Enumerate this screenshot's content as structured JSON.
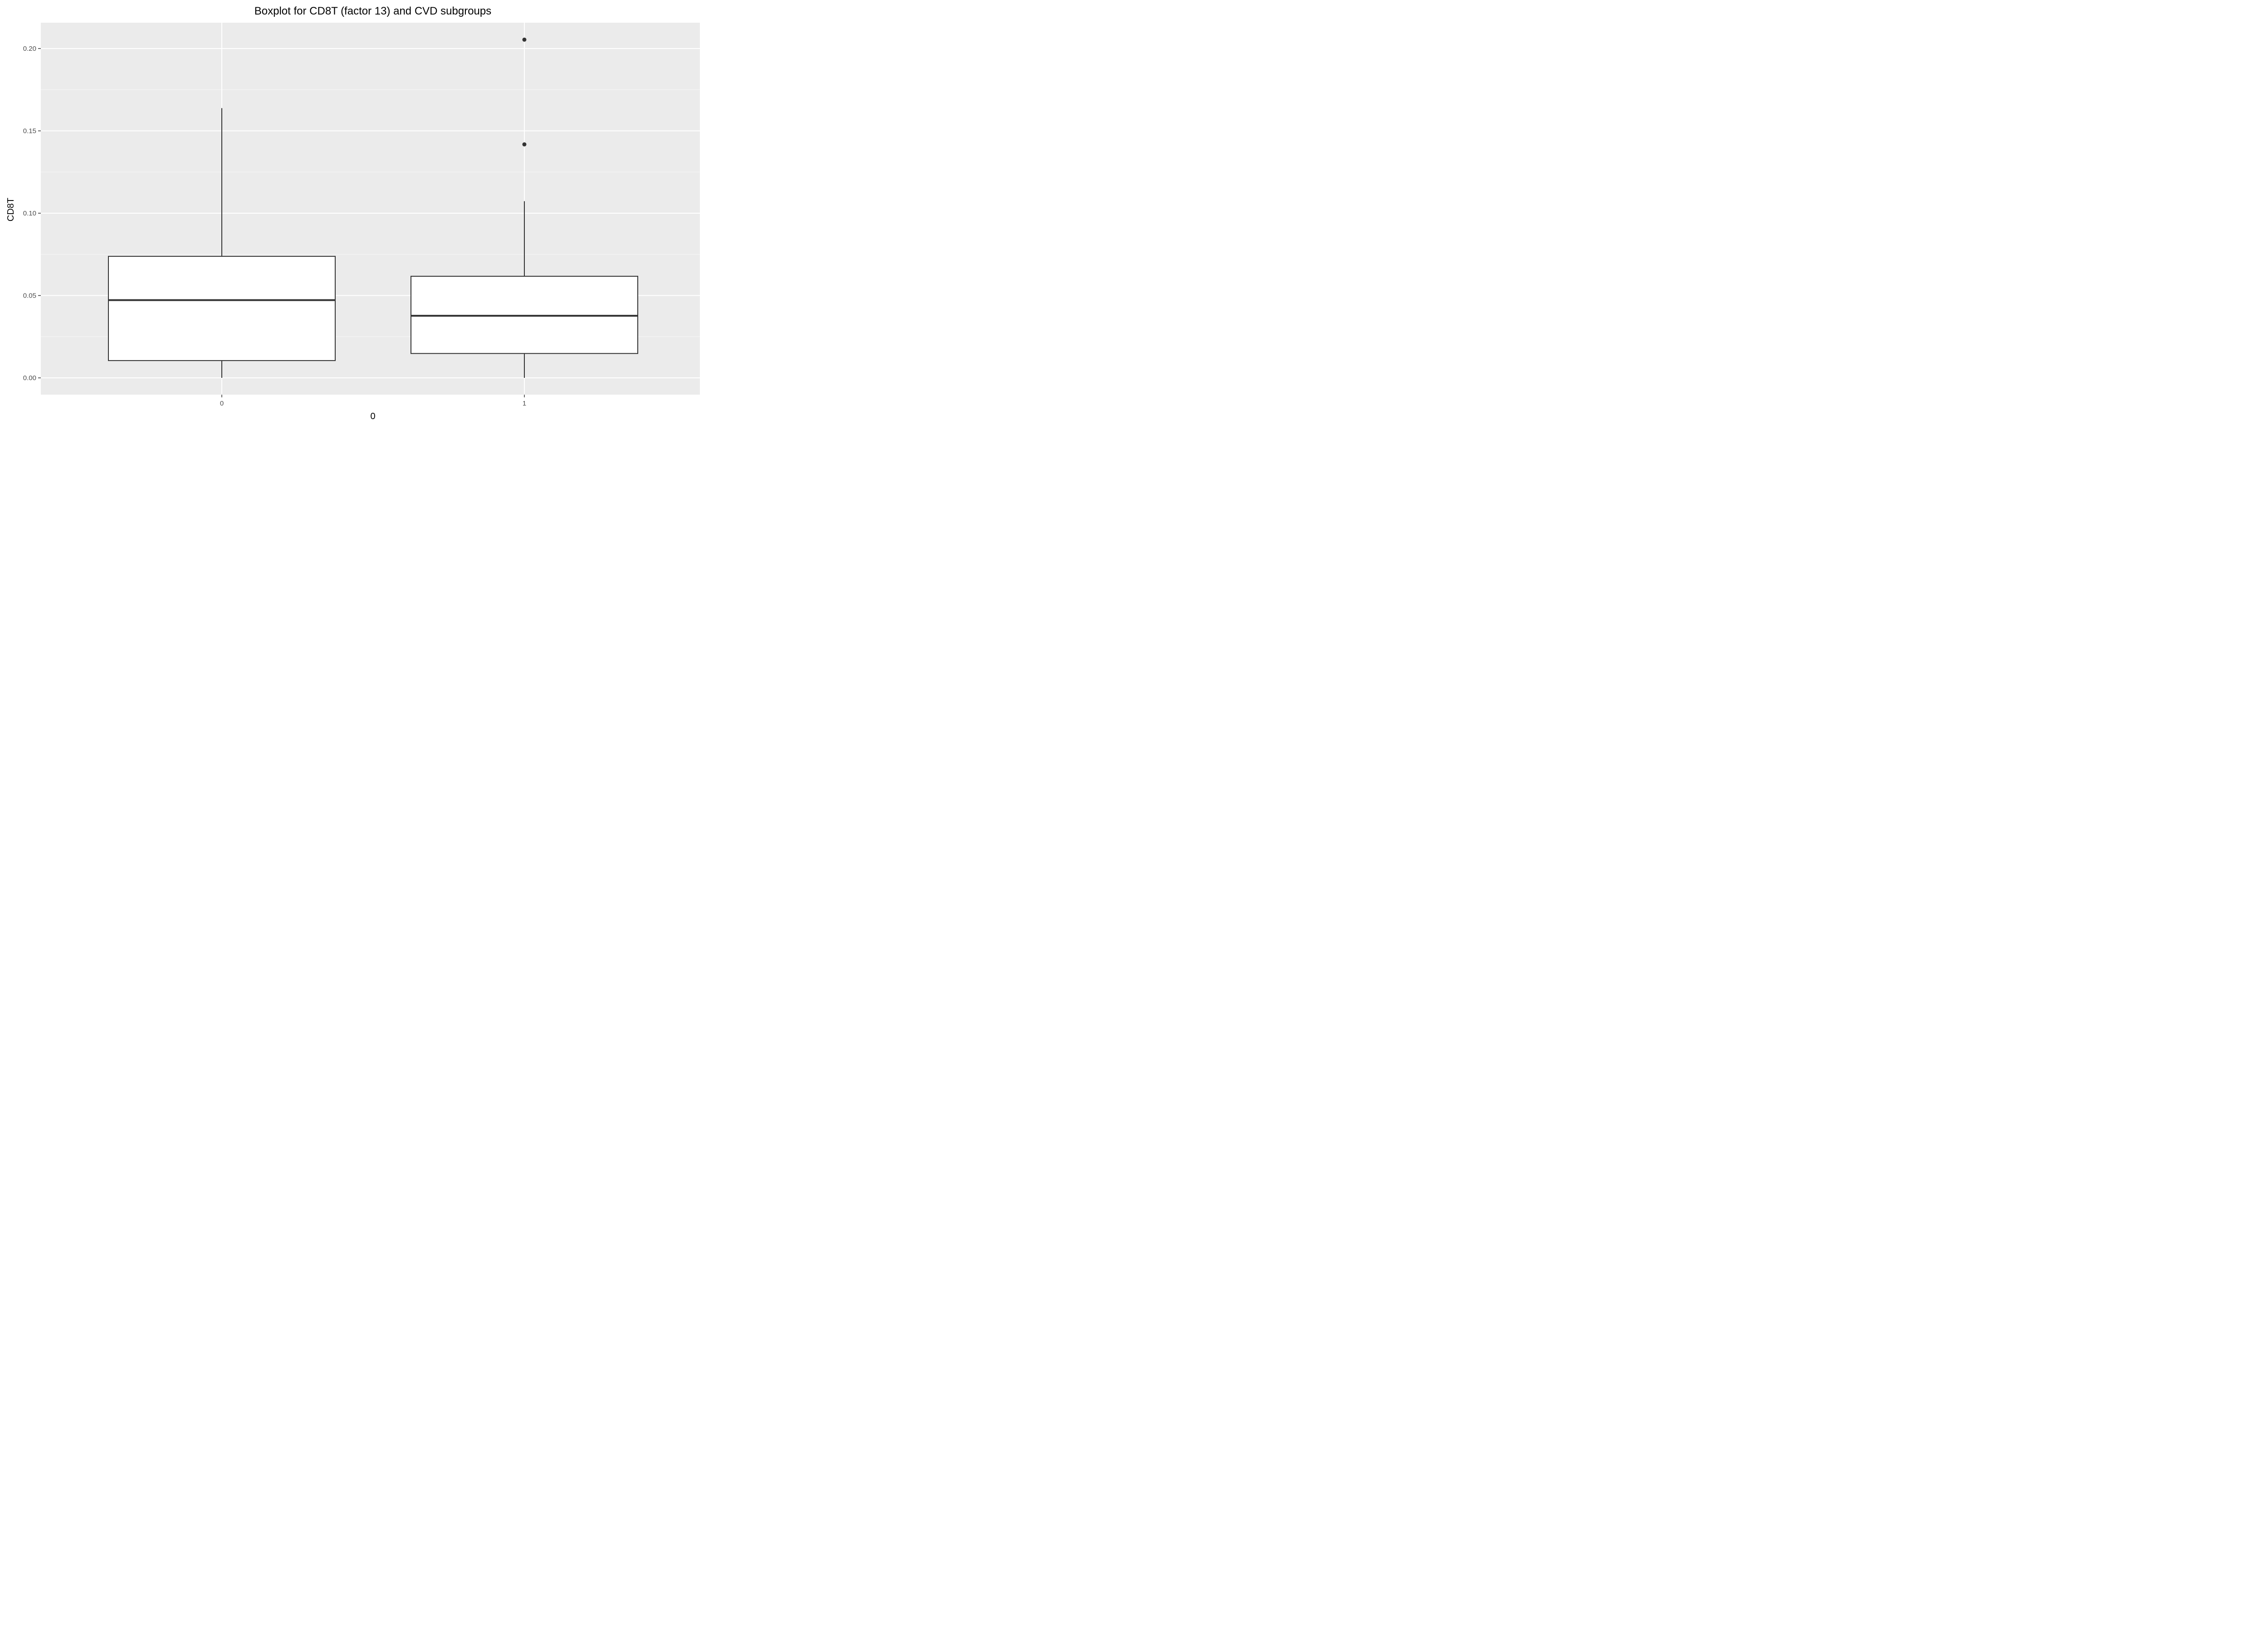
{
  "chart_data": {
    "type": "boxplot",
    "title": "Boxplot for CD8T (factor 13) and CVD subgroups",
    "xlabel": "0",
    "ylabel": "CD8T",
    "categories": [
      "0",
      "1"
    ],
    "ylim": [
      -0.01,
      0.215
    ],
    "yticks": [
      0.0,
      0.05,
      0.1,
      0.15,
      0.2
    ],
    "ytick_labels": [
      "0.00",
      "0.05",
      "0.10",
      "0.15",
      "0.20"
    ],
    "grid": true,
    "legend": "none",
    "boxes": [
      {
        "category": "0",
        "whisker_low": 0.0,
        "q1": 0.0105,
        "median": 0.0472,
        "q3": 0.0738,
        "whisker_high": 0.1638,
        "outliers": []
      },
      {
        "category": "1",
        "whisker_low": 0.0,
        "q1": 0.0148,
        "median": 0.0377,
        "q3": 0.0617,
        "whisker_high": 0.1073,
        "outliers": [
          0.1418,
          0.2054
        ]
      }
    ]
  },
  "colors": {
    "panel_background": "#ebebeb",
    "grid_major": "#ffffff",
    "grid_minor": "#f5f5f5",
    "box_fill": "#ffffff",
    "box_line": "#333333",
    "tick_text": "#4d4d4d",
    "title_text": "#000000"
  }
}
